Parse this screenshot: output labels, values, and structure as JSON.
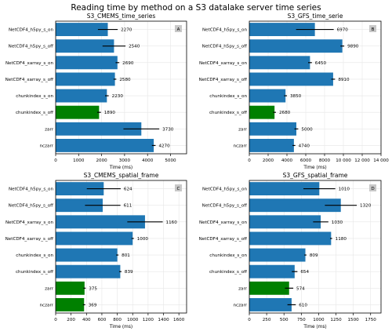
{
  "figure": {
    "title": "Reading time by method on a S3 datalake server time series"
  },
  "colors": {
    "bar": "#1f77b4",
    "highlight": "#008000",
    "error": "#000000",
    "grid": "#e6e6e6",
    "badge": "#c8c8c8"
  },
  "chart_data": [
    {
      "type": "bar",
      "orientation": "horizontal",
      "title": "S3_CMEMS_time_series",
      "xlabel": "Time (ms)",
      "badge": "A",
      "categories": [
        "NetCDF4_h5py_s_on",
        "NetCDF4_h5py_s_off",
        "NetCDF4_xarray_s_on",
        "NetCDF4_xarray_s_off",
        "chunkindex_s_on",
        "chunkindex_s_off",
        "zarr",
        "nczarr"
      ],
      "values": [
        2270,
        2540,
        2690,
        2580,
        2230,
        1890,
        3730,
        4270
      ],
      "labels": [
        "2270",
        "2540",
        "2690",
        "2580",
        "2230",
        "1890",
        "3730",
        "4270"
      ],
      "errors": [
        430,
        500,
        80,
        60,
        80,
        80,
        780,
        80
      ],
      "highlight_index": 5,
      "xlim": [
        0,
        5700
      ],
      "xticks": [
        0,
        1000,
        2000,
        3000,
        4000,
        5000
      ],
      "xtick_labels": [
        "0",
        "1000",
        "2000",
        "3000",
        "4000",
        "5000"
      ],
      "grid": true
    },
    {
      "type": "bar",
      "orientation": "horizontal",
      "title": "S3_GFS_time_serie",
      "xlabel": "Time (ms)",
      "badge": "B",
      "categories": [
        "NetCDF4_h5py_s_on",
        "NetCDF4_h5py_s_off",
        "NetCDF4_xarray_s_on",
        "NetCDF4_xarray_s_off",
        "chunkindex_s_on",
        "chunkindex_s_off",
        "zarr",
        "nczarr"
      ],
      "values": [
        6970,
        9890,
        6450,
        8910,
        3850,
        2680,
        5000,
        4740
      ],
      "labels": [
        "6970",
        "9890",
        "6450",
        "8910",
        "3850",
        "2680",
        "5000",
        "4740"
      ],
      "errors": [
        2000,
        200,
        200,
        200,
        150,
        150,
        200,
        150
      ],
      "highlight_index": 5,
      "xlim": [
        0,
        14000
      ],
      "xticks": [
        0,
        2000,
        4000,
        6000,
        8000,
        10000,
        12000,
        14000
      ],
      "xtick_labels": [
        "0",
        "2000",
        "4000",
        "6000",
        "8000",
        "10 000",
        "12 000",
        "14 000"
      ],
      "grid": true
    },
    {
      "type": "bar",
      "orientation": "horizontal",
      "title": "S3_CMEMS_spatial_frame",
      "xlabel": "Time (ms)",
      "badge": "C",
      "categories": [
        "NetCDF4_h5py_s_on",
        "NetCDF4_h5py_s_off",
        "NetCDF4_xarray_s_on",
        "NetCDF4_xarray_s_off",
        "chunkindex_s_on",
        "chunkindex_s_off",
        "zarr",
        "nczarr"
      ],
      "values": [
        624,
        611,
        1160,
        1000,
        801,
        839,
        375,
        369
      ],
      "labels": [
        "624",
        "611",
        "1160",
        "1000",
        "801",
        "839",
        "375",
        "369"
      ],
      "errors": [
        220,
        230,
        230,
        15,
        15,
        15,
        15,
        15
      ],
      "highlight_index": [
        6,
        7
      ],
      "xlim": [
        0,
        1700
      ],
      "xticks": [
        0,
        200,
        400,
        600,
        800,
        1000,
        1200,
        1400,
        1600
      ],
      "xtick_labels": [
        "0",
        "200",
        "400",
        "600",
        "800",
        "1000",
        "1200",
        "1400",
        "1600"
      ],
      "grid": true
    },
    {
      "type": "bar",
      "orientation": "horizontal",
      "title": "S3_GFS_spatial_frame",
      "xlabel": "Time (ms)",
      "badge": "D",
      "categories": [
        "NetCDF4_h5py_s_on",
        "NetCDF4_h5py_s_off",
        "NetCDF4_xarray_s_on",
        "NetCDF4_xarray_s_off",
        "chunkindex_s_on",
        "chunkindex_s_off",
        "zarr",
        "nczarr"
      ],
      "values": [
        1010,
        1320,
        1030,
        1180,
        809,
        654,
        574,
        610
      ],
      "labels": [
        "1010",
        "1320",
        "1030",
        "1180",
        "809",
        "654",
        "574",
        "610"
      ],
      "errors": [
        230,
        230,
        110,
        15,
        15,
        40,
        60,
        60
      ],
      "highlight_index": 6,
      "xlim": [
        0,
        1900
      ],
      "xticks": [
        0,
        250,
        500,
        750,
        1000,
        1250,
        1500,
        1750
      ],
      "xtick_labels": [
        "0",
        "250",
        "500",
        "750",
        "1000",
        "1250",
        "1500",
        "1750"
      ],
      "grid": true
    }
  ]
}
